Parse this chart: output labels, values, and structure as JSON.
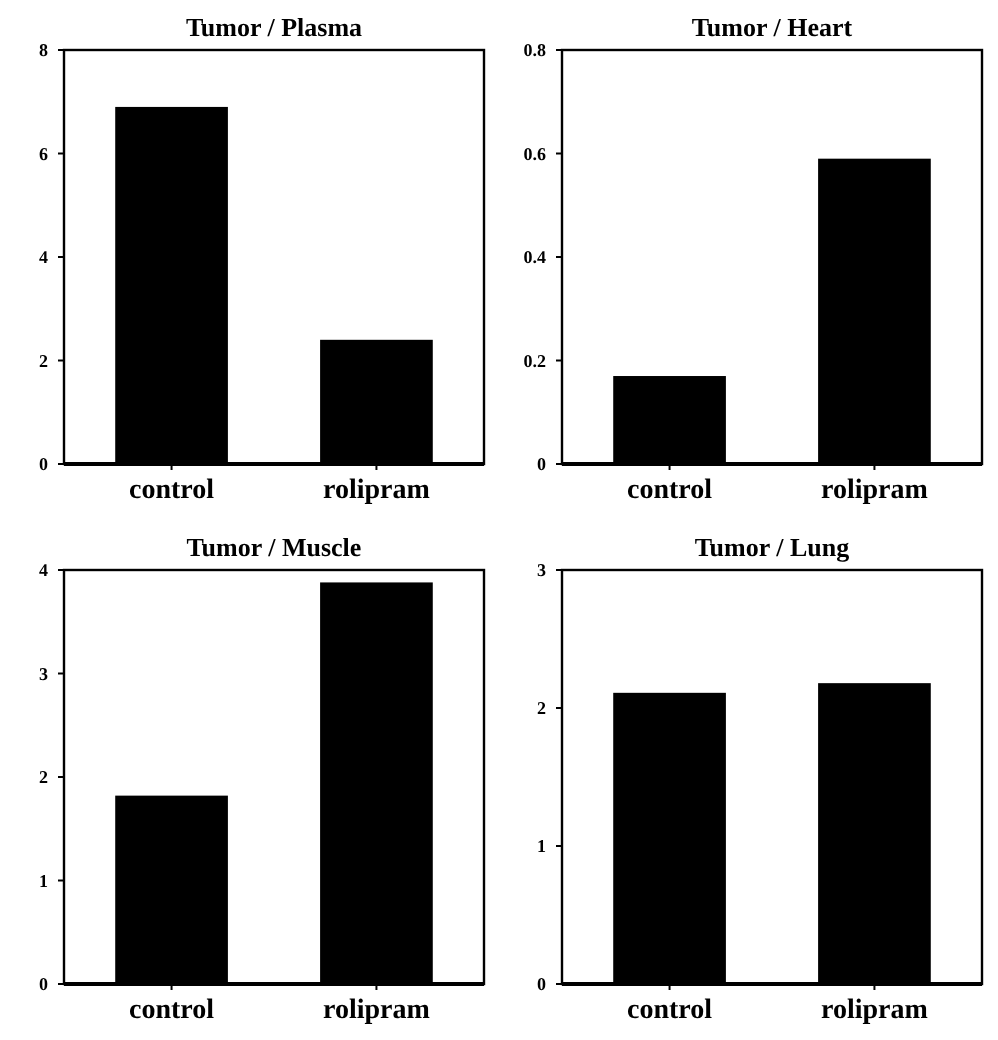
{
  "chart_data": [
    {
      "type": "bar",
      "title": "Tumor / Plasma",
      "categories": [
        "control",
        "rolipram"
      ],
      "values": [
        6.9,
        2.4
      ],
      "color": "#000000",
      "ylim": [
        0,
        8
      ],
      "yticks": [
        0,
        2,
        4,
        6,
        8
      ],
      "grid": false
    },
    {
      "type": "bar",
      "title": "Tumor / Heart",
      "categories": [
        "control",
        "rolipram"
      ],
      "values": [
        0.17,
        0.59
      ],
      "color": "#000000",
      "ylim": [
        0,
        0.8
      ],
      "yticks": [
        0,
        0.2,
        0.4,
        0.6,
        0.8
      ],
      "grid": false
    },
    {
      "type": "bar",
      "title": "Tumor / Muscle",
      "categories": [
        "control",
        "rolipram"
      ],
      "values": [
        1.82,
        3.88
      ],
      "color": "#000000",
      "ylim": [
        0,
        4
      ],
      "yticks": [
        0,
        1,
        2,
        3,
        4
      ],
      "grid": false
    },
    {
      "type": "bar",
      "title": "Tumor / Lung",
      "categories": [
        "control",
        "rolipram"
      ],
      "values": [
        2.11,
        2.18
      ],
      "color": "#000000",
      "ylim": [
        0,
        3
      ],
      "yticks": [
        0,
        1,
        2,
        3
      ],
      "grid": false
    }
  ]
}
